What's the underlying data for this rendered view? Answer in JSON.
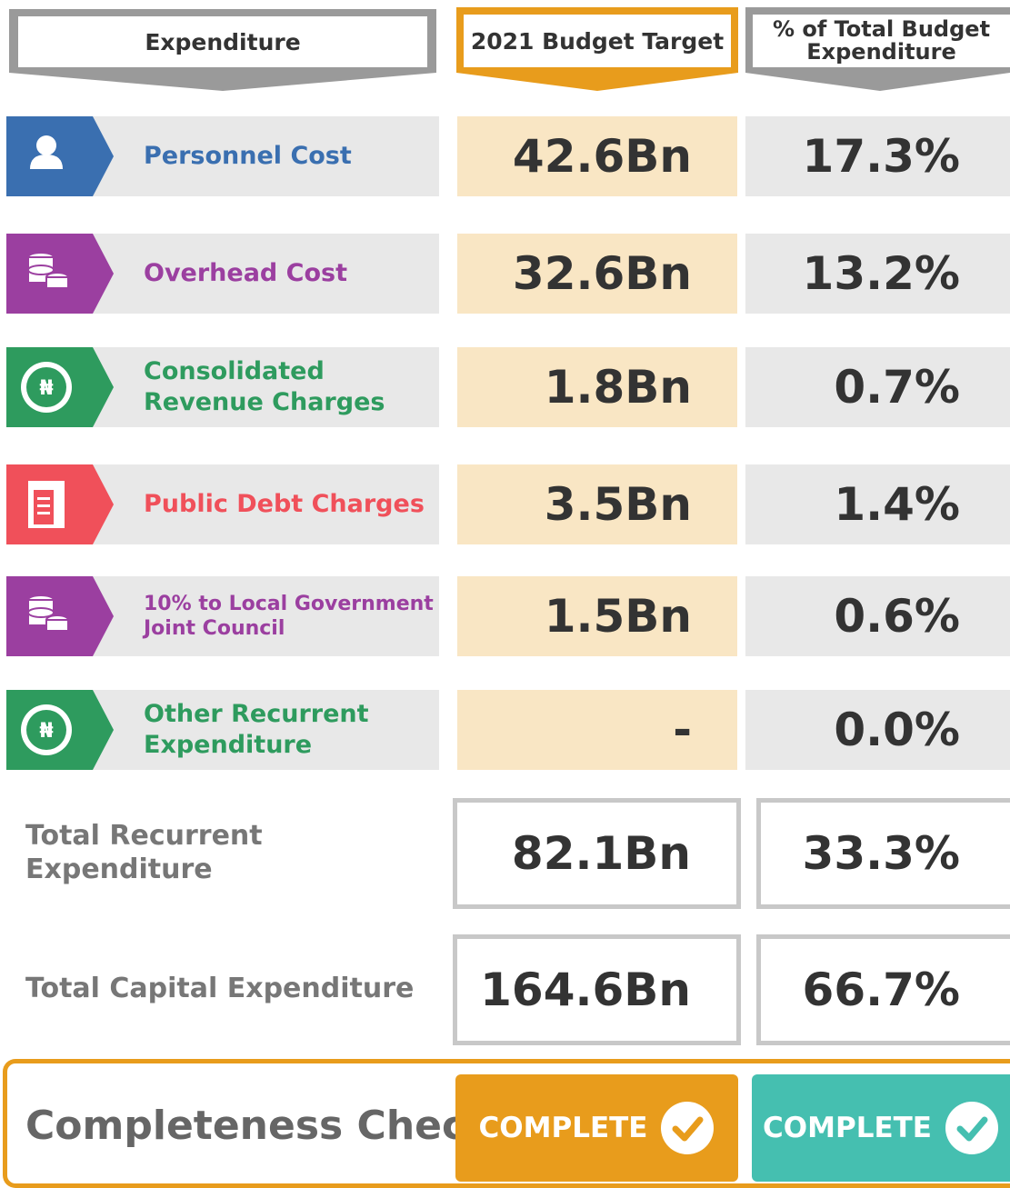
{
  "header": {
    "expenditure": "Expenditure",
    "budget": "2021 Budget Target",
    "percent": "% of Total Budget Expenditure"
  },
  "rows": [
    {
      "label": "Personnel Cost",
      "budget": "42.6Bn",
      "percent": "17.3%",
      "color": "#3a6fb0"
    },
    {
      "label": "Overhead Cost",
      "budget": "32.6Bn",
      "percent": "13.2%",
      "color": "#9b3fa0"
    },
    {
      "label": "Consolidated Revenue Charges",
      "budget": "1.8Bn",
      "percent": "0.7%",
      "color": "#2e9b5e"
    },
    {
      "label": "Public Debt Charges",
      "budget": "3.5Bn",
      "percent": "1.4%",
      "color": "#f0505a"
    },
    {
      "label": "10% to Local Government Joint Council",
      "budget": "1.5Bn",
      "percent": "0.6%",
      "color": "#9b3fa0"
    },
    {
      "label": "Other Recurrent Expenditure",
      "budget": "-",
      "percent": "0.0%",
      "color": "#2e9b5e"
    }
  ],
  "totals": [
    {
      "label": "Total Recurrent Expenditure",
      "budget": "82.1Bn",
      "percent": "33.3%"
    },
    {
      "label": "Total Capital Expenditure",
      "budget": "164.6Bn",
      "percent": "66.7%"
    }
  ],
  "completeness": {
    "label": "Completeness Check",
    "budget_status": "COMPLETE",
    "percent_status": "COMPLETE"
  }
}
